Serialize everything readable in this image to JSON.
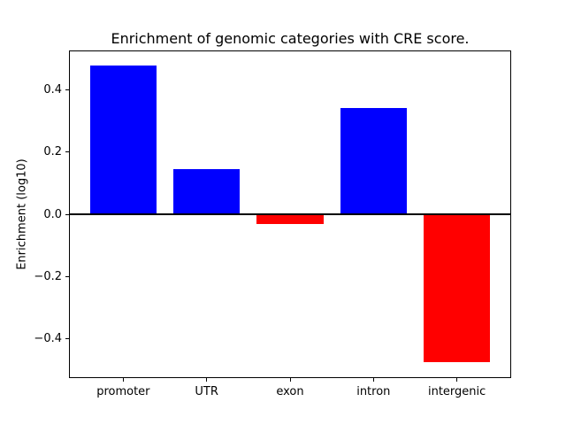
{
  "chart_data": {
    "type": "bar",
    "title": "Enrichment of genomic categories with CRE score.",
    "xlabel": "",
    "ylabel": "Enrichment (log10)",
    "categories": [
      "promoter",
      "UTR",
      "exon",
      "intron",
      "intergenic"
    ],
    "values": [
      0.478,
      0.145,
      -0.03,
      0.34,
      -0.475
    ],
    "bar_colors": [
      "#0000ff",
      "#0000ff",
      "#ff0000",
      "#0000ff",
      "#ff0000"
    ],
    "positive_color": "#0000ff",
    "negative_color": "#ff0000",
    "yticks": [
      -0.4,
      -0.2,
      0.0,
      0.2,
      0.4
    ],
    "ylim": [
      -0.523,
      0.523
    ],
    "xlim": [
      -0.64,
      4.64
    ],
    "bar_width": 0.8,
    "zero_line": true,
    "zero_line_color": "#000000",
    "grid": false,
    "legend": null,
    "background_color": "#ffffff"
  }
}
